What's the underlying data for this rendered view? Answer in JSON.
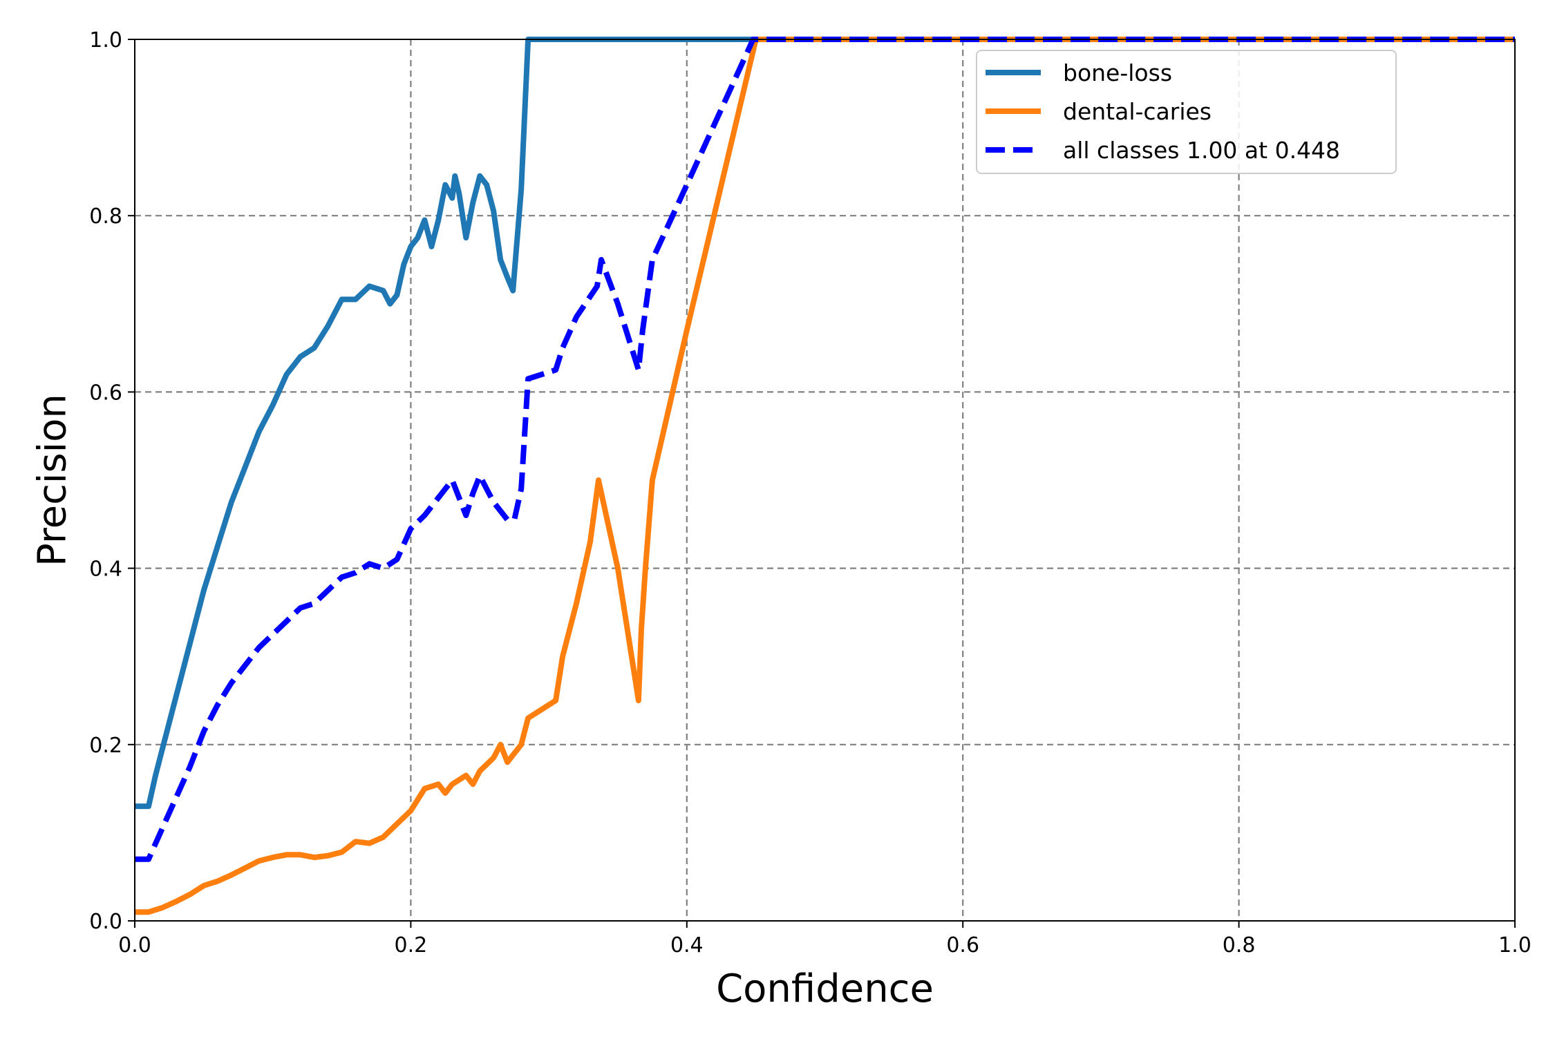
{
  "chart_data": {
    "type": "line",
    "title": "",
    "xlabel": "Confidence",
    "ylabel": "Precision",
    "xlim": [
      0,
      1
    ],
    "ylim": [
      0,
      1
    ],
    "xticks": [
      "0.0",
      "0.2",
      "0.4",
      "0.6",
      "0.8",
      "1.0"
    ],
    "yticks": [
      "0.0",
      "0.2",
      "0.4",
      "0.6",
      "0.8",
      "1.0"
    ],
    "grid": true,
    "legend_position": "top-right",
    "series": [
      {
        "name": "bone-loss",
        "color": "#1f77b4",
        "style": "solid",
        "points": [
          [
            0.0,
            0.13
          ],
          [
            0.01,
            0.13
          ],
          [
            0.015,
            0.165
          ],
          [
            0.02,
            0.195
          ],
          [
            0.03,
            0.255
          ],
          [
            0.04,
            0.315
          ],
          [
            0.05,
            0.375
          ],
          [
            0.06,
            0.425
          ],
          [
            0.07,
            0.475
          ],
          [
            0.08,
            0.515
          ],
          [
            0.09,
            0.555
          ],
          [
            0.1,
            0.585
          ],
          [
            0.11,
            0.62
          ],
          [
            0.12,
            0.64
          ],
          [
            0.13,
            0.65
          ],
          [
            0.14,
            0.675
          ],
          [
            0.15,
            0.705
          ],
          [
            0.16,
            0.705
          ],
          [
            0.17,
            0.72
          ],
          [
            0.18,
            0.715
          ],
          [
            0.185,
            0.7
          ],
          [
            0.19,
            0.71
          ],
          [
            0.195,
            0.745
          ],
          [
            0.2,
            0.765
          ],
          [
            0.205,
            0.775
          ],
          [
            0.21,
            0.795
          ],
          [
            0.215,
            0.765
          ],
          [
            0.22,
            0.795
          ],
          [
            0.225,
            0.835
          ],
          [
            0.23,
            0.82
          ],
          [
            0.232,
            0.845
          ],
          [
            0.235,
            0.825
          ],
          [
            0.24,
            0.775
          ],
          [
            0.245,
            0.815
          ],
          [
            0.25,
            0.845
          ],
          [
            0.255,
            0.835
          ],
          [
            0.26,
            0.805
          ],
          [
            0.265,
            0.75
          ],
          [
            0.27,
            0.73
          ],
          [
            0.274,
            0.715
          ],
          [
            0.28,
            0.83
          ],
          [
            0.285,
            1.0
          ],
          [
            1.0,
            1.0
          ]
        ]
      },
      {
        "name": "dental-caries",
        "color": "#ff7f0e",
        "style": "solid",
        "points": [
          [
            0.0,
            0.01
          ],
          [
            0.01,
            0.01
          ],
          [
            0.02,
            0.015
          ],
          [
            0.03,
            0.022
          ],
          [
            0.04,
            0.03
          ],
          [
            0.05,
            0.04
          ],
          [
            0.06,
            0.045
          ],
          [
            0.07,
            0.052
          ],
          [
            0.08,
            0.06
          ],
          [
            0.09,
            0.068
          ],
          [
            0.1,
            0.072
          ],
          [
            0.11,
            0.075
          ],
          [
            0.12,
            0.075
          ],
          [
            0.13,
            0.072
          ],
          [
            0.14,
            0.074
          ],
          [
            0.15,
            0.078
          ],
          [
            0.16,
            0.09
          ],
          [
            0.17,
            0.088
          ],
          [
            0.18,
            0.095
          ],
          [
            0.19,
            0.11
          ],
          [
            0.2,
            0.125
          ],
          [
            0.21,
            0.15
          ],
          [
            0.22,
            0.155
          ],
          [
            0.225,
            0.145
          ],
          [
            0.23,
            0.155
          ],
          [
            0.24,
            0.165
          ],
          [
            0.245,
            0.155
          ],
          [
            0.25,
            0.17
          ],
          [
            0.26,
            0.185
          ],
          [
            0.265,
            0.2
          ],
          [
            0.27,
            0.18
          ],
          [
            0.28,
            0.2
          ],
          [
            0.285,
            0.23
          ],
          [
            0.305,
            0.25
          ],
          [
            0.31,
            0.3
          ],
          [
            0.32,
            0.36
          ],
          [
            0.33,
            0.43
          ],
          [
            0.336,
            0.5
          ],
          [
            0.35,
            0.4
          ],
          [
            0.365,
            0.25
          ],
          [
            0.367,
            0.33
          ],
          [
            0.37,
            0.4
          ],
          [
            0.375,
            0.5
          ],
          [
            0.4,
            0.67
          ],
          [
            0.45,
            1.0
          ],
          [
            1.0,
            1.0
          ]
        ]
      },
      {
        "name": "all classes 1.00 at 0.448",
        "color": "#0000ff",
        "style": "dashed",
        "points": [
          [
            0.0,
            0.07
          ],
          [
            0.01,
            0.07
          ],
          [
            0.02,
            0.105
          ],
          [
            0.03,
            0.14
          ],
          [
            0.04,
            0.175
          ],
          [
            0.05,
            0.215
          ],
          [
            0.06,
            0.245
          ],
          [
            0.07,
            0.27
          ],
          [
            0.08,
            0.29
          ],
          [
            0.09,
            0.31
          ],
          [
            0.1,
            0.325
          ],
          [
            0.11,
            0.34
          ],
          [
            0.12,
            0.355
          ],
          [
            0.13,
            0.36
          ],
          [
            0.14,
            0.375
          ],
          [
            0.15,
            0.39
          ],
          [
            0.16,
            0.395
          ],
          [
            0.17,
            0.405
          ],
          [
            0.18,
            0.4
          ],
          [
            0.19,
            0.41
          ],
          [
            0.2,
            0.445
          ],
          [
            0.21,
            0.46
          ],
          [
            0.22,
            0.48
          ],
          [
            0.23,
            0.5
          ],
          [
            0.235,
            0.48
          ],
          [
            0.24,
            0.46
          ],
          [
            0.245,
            0.485
          ],
          [
            0.25,
            0.505
          ],
          [
            0.255,
            0.49
          ],
          [
            0.26,
            0.475
          ],
          [
            0.27,
            0.455
          ],
          [
            0.275,
            0.455
          ],
          [
            0.28,
            0.49
          ],
          [
            0.285,
            0.615
          ],
          [
            0.305,
            0.625
          ],
          [
            0.31,
            0.65
          ],
          [
            0.32,
            0.685
          ],
          [
            0.335,
            0.72
          ],
          [
            0.338,
            0.75
          ],
          [
            0.35,
            0.7
          ],
          [
            0.365,
            0.625
          ],
          [
            0.368,
            0.67
          ],
          [
            0.375,
            0.75
          ],
          [
            0.4,
            0.835
          ],
          [
            0.448,
            1.0
          ],
          [
            1.0,
            1.0
          ]
        ]
      }
    ]
  }
}
